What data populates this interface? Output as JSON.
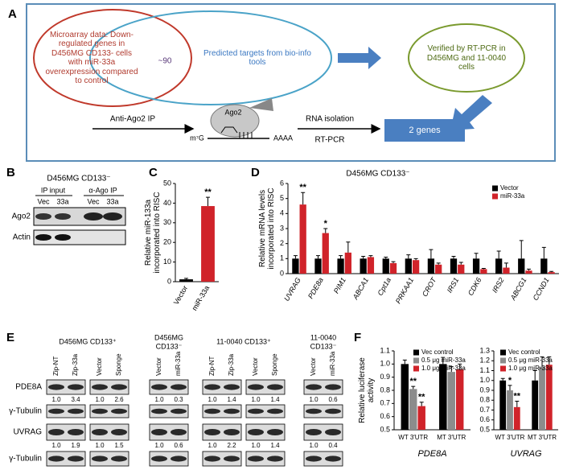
{
  "panel_a": {
    "letter": "A",
    "microarray": "Microarray data: Down-regulated genes in D456MG CD133- cells with miR-33a overexpression compared to control",
    "overlap": "~90",
    "predicted": "Predicted targets from bio-info tools",
    "verified": "Verified by RT-PCR in D456MG and 11-0040 cells",
    "ip": "Anti-Ago2 IP",
    "ago2": "Ago2",
    "cap": "m⁷G",
    "polya": "AAAA",
    "isolation": "RNA isolation",
    "rtpcr": "RT-PCR",
    "result": "2 genes"
  },
  "panel_b": {
    "letter": "B",
    "title": "D456MG CD133⁻",
    "input": "IP input",
    "ip": "α-Ago IP",
    "lanes": [
      "Vec",
      "33a",
      "Vec",
      "33a"
    ],
    "rows": [
      "Ago2",
      "Actin"
    ]
  },
  "panel_e": {
    "letter": "E",
    "rows": [
      "PDE8A",
      "γ-Tubulin",
      "UVRAG",
      "γ-Tubulin"
    ],
    "groups": [
      {
        "title": [
          "D456MG CD133⁺"
        ],
        "blots": [
          {
            "lanes": [
              "Zip-NT",
              "Zip-33a"
            ],
            "pde8a": [
              "1.0",
              "3.4"
            ],
            "uvrag": [
              "1.0",
              "1.9"
            ]
          },
          {
            "lanes": [
              "Vector",
              "Sponge"
            ],
            "pde8a": [
              "1.0",
              "2.6"
            ],
            "uvrag": [
              "1.0",
              "1.5"
            ]
          }
        ]
      },
      {
        "title": [
          "D456MG",
          "CD133⁻"
        ],
        "blots": [
          {
            "lanes": [
              "Vector",
              "miR-33a"
            ],
            "pde8a": [
              "1.0",
              "0.3"
            ],
            "uvrag": [
              "1.0",
              "0.6"
            ]
          }
        ]
      },
      {
        "title": [
          "11-0040 CD133⁺"
        ],
        "blots": [
          {
            "lanes": [
              "Zip-NT",
              "Zip-33a"
            ],
            "pde8a": [
              "1.0",
              "1.4"
            ],
            "uvrag": [
              "1.0",
              "2.2"
            ]
          },
          {
            "lanes": [
              "Vector",
              "Sponge"
            ],
            "pde8a": [
              "1.0",
              "1.4"
            ],
            "uvrag": [
              "1.0",
              "1.4"
            ]
          }
        ]
      },
      {
        "title": [
          "11-0040",
          "CD133⁻"
        ],
        "blots": [
          {
            "lanes": [
              "Vector",
              "miR-33a"
            ],
            "pde8a": [
              "1.0",
              "0.6"
            ],
            "uvrag": [
              "1.0",
              "0.4"
            ]
          }
        ]
      }
    ]
  },
  "panel_f_letter": "F",
  "chart_data": [
    {
      "type": "bar",
      "label": "C",
      "ylabel": "Relative miR-133a incorporated into RISC",
      "categories": [
        "Vector",
        "miR-33a"
      ],
      "values": [
        1.2,
        38.5
      ],
      "errors": [
        0.5,
        4.5
      ],
      "significance": [
        null,
        "**"
      ],
      "colors": [
        "#000000",
        "#d0232a"
      ],
      "ylim": [
        0,
        50
      ],
      "yticks": [
        0,
        10,
        20,
        30,
        40,
        50
      ]
    },
    {
      "type": "bar",
      "label": "D",
      "title": "D456MG CD133⁻",
      "ylabel": "Relative mRNA levels incorporated into RISC",
      "categories": [
        "UVRAG",
        "PDE8a",
        "PIM1",
        "ABCA1",
        "Cpt1a",
        "PRKAA1",
        "CROT",
        "IRS1",
        "CDK6",
        "IRS2",
        "ABCG1",
        "CCND1"
      ],
      "ylim": [
        0,
        6
      ],
      "yticks": [
        0,
        1,
        2,
        3,
        4,
        5,
        6
      ],
      "series": [
        {
          "name": "Vector",
          "color": "#000000",
          "values": [
            1,
            1,
            1,
            1,
            1,
            1,
            1,
            1,
            1,
            1,
            1,
            1
          ],
          "errors": [
            0.2,
            0.2,
            0.2,
            0.15,
            0.1,
            0.25,
            0.6,
            0.15,
            0.35,
            0.5,
            1.2,
            0.75
          ]
        },
        {
          "name": "miR-33a",
          "color": "#d0232a",
          "values": [
            4.6,
            2.7,
            1.4,
            1.1,
            0.7,
            0.9,
            0.6,
            0.6,
            0.3,
            0.4,
            0.2,
            0.1
          ],
          "errors": [
            0.8,
            0.3,
            0.7,
            0.1,
            0.1,
            0.1,
            0.1,
            0.15,
            0.05,
            0.3,
            0.1,
            0.05
          ],
          "significance": [
            "**",
            "*",
            null,
            null,
            null,
            null,
            null,
            null,
            null,
            null,
            null,
            null
          ]
        }
      ]
    },
    {
      "type": "bar",
      "ylabel": "Relative luciferase activity",
      "xlabel": "PDE8A",
      "categories": [
        "WT 3′UTR",
        "MT 3′UTR"
      ],
      "ylim": [
        0.5,
        1.1
      ],
      "yticks": [
        0.5,
        0.6,
        0.7,
        0.8,
        0.9,
        {
          "value": 1,
          "label": "1.0"
        },
        1.1
      ],
      "series": [
        {
          "name": "Vec control",
          "color": "#000000",
          "values": [
            1,
            1
          ],
          "errors": [
            0.03,
            0.05
          ]
        },
        {
          "name": "0.5 μg miR-33a",
          "color": "#8c8c8c",
          "values": [
            0.81,
            0.94
          ],
          "errors": [
            0.02,
            0.04
          ],
          "significance": [
            "**",
            null
          ]
        },
        {
          "name": "1.0 μg miR-33a",
          "color": "#d0232a",
          "values": [
            0.68,
            0.96
          ],
          "errors": [
            0.03,
            0.04
          ],
          "significance": [
            "**",
            null
          ]
        }
      ]
    },
    {
      "type": "bar",
      "xlabel": "UVRAG",
      "categories": [
        "WT 3′UTR",
        "MT 3′UTR"
      ],
      "ylim": [
        0.5,
        1.3
      ],
      "yticks": [
        0.5,
        0.6,
        0.7,
        0.8,
        0.9,
        {
          "value": 1,
          "label": "1.0"
        },
        1.1,
        1.2,
        1.3
      ],
      "series": [
        {
          "name": "Vec control",
          "color": "#000000",
          "values": [
            1,
            1
          ],
          "errors": [
            0.02,
            0.1
          ]
        },
        {
          "name": "0.5 μg miR-33a",
          "color": "#8c8c8c",
          "values": [
            0.9,
            1.14
          ],
          "errors": [
            0.05,
            0.1
          ],
          "significance": [
            "*",
            null
          ]
        },
        {
          "name": "1.0 μg miR-33a",
          "color": "#d0232a",
          "values": [
            0.73,
            1.16
          ],
          "errors": [
            0.06,
            0.08
          ],
          "significance": [
            "**",
            null
          ]
        }
      ]
    }
  ]
}
